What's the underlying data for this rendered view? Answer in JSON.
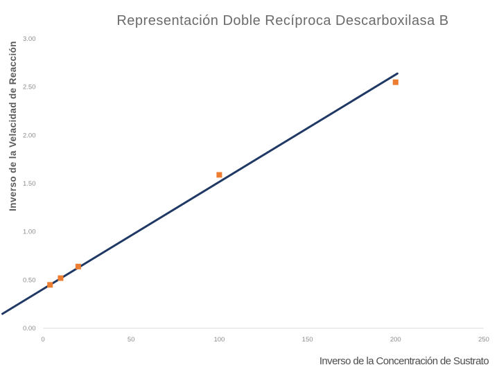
{
  "chart_data": {
    "type": "scatter",
    "title": "Representación Doble Recíproca Descarboxilasa B",
    "xlabel": "Inverso de la Concentración de Sustrato",
    "ylabel": "Inverso de la Velacidad de Reacción",
    "xlim": [
      0,
      250
    ],
    "ylim": [
      0,
      3
    ],
    "x_ticks": [
      "0",
      "50",
      "100",
      "150",
      "200",
      "250"
    ],
    "y_ticks": [
      "0.00",
      "0.50",
      "1.00",
      "1.50",
      "2.00",
      "2.50",
      "3.00"
    ],
    "points": [
      {
        "x": 4,
        "y": 0.45
      },
      {
        "x": 10,
        "y": 0.52
      },
      {
        "x": 20,
        "y": 0.64
      },
      {
        "x": 100,
        "y": 1.59
      },
      {
        "x": 200,
        "y": 2.55
      }
    ],
    "trendline": {
      "type": "linear",
      "x_range": [
        -23,
        201
      ],
      "y_start": 0.15,
      "y_end": 2.64
    },
    "grid": false,
    "marker_color": "#ed7d31",
    "trendline_color": "#1f3864"
  }
}
